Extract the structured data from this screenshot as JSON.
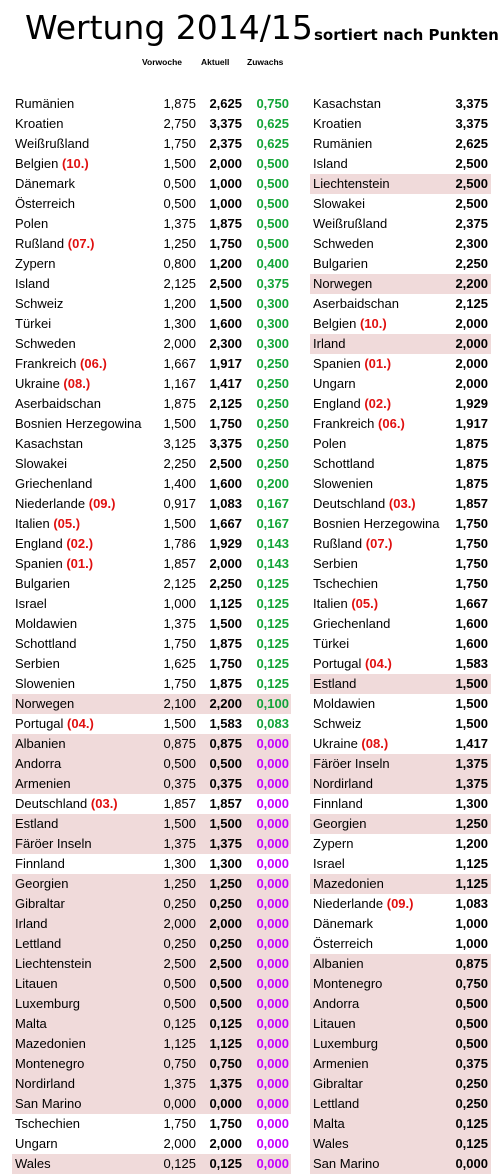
{
  "title": "Wertung 2014/15",
  "subtitle": "sortiert nach Punkten",
  "headers": {
    "vorwoche": "Vorwoche",
    "aktuell": "Aktuell",
    "zuwachs": "Zuwachs"
  },
  "colors": {
    "highlight": "#f0dada",
    "rank": "#e01010",
    "positive": "#13a538",
    "zero": "#c400ff"
  },
  "left": [
    {
      "name": "Rumänien",
      "rank": "",
      "vw": "1,875",
      "ak": "2,625",
      "zg": "0,750",
      "hl": false
    },
    {
      "name": "Kroatien",
      "rank": "",
      "vw": "2,750",
      "ak": "3,375",
      "zg": "0,625",
      "hl": false
    },
    {
      "name": "Weißrußland",
      "rank": "",
      "vw": "1,750",
      "ak": "2,375",
      "zg": "0,625",
      "hl": false
    },
    {
      "name": "Belgien",
      "rank": "(10.)",
      "vw": "1,500",
      "ak": "2,000",
      "zg": "0,500",
      "hl": false
    },
    {
      "name": "Dänemark",
      "rank": "",
      "vw": "0,500",
      "ak": "1,000",
      "zg": "0,500",
      "hl": false
    },
    {
      "name": "Österreich",
      "rank": "",
      "vw": "0,500",
      "ak": "1,000",
      "zg": "0,500",
      "hl": false
    },
    {
      "name": "Polen",
      "rank": "",
      "vw": "1,375",
      "ak": "1,875",
      "zg": "0,500",
      "hl": false
    },
    {
      "name": "Rußland",
      "rank": "(07.)",
      "vw": "1,250",
      "ak": "1,750",
      "zg": "0,500",
      "hl": false
    },
    {
      "name": "Zypern",
      "rank": "",
      "vw": "0,800",
      "ak": "1,200",
      "zg": "0,400",
      "hl": false
    },
    {
      "name": "Island",
      "rank": "",
      "vw": "2,125",
      "ak": "2,500",
      "zg": "0,375",
      "hl": false
    },
    {
      "name": "Schweiz",
      "rank": "",
      "vw": "1,200",
      "ak": "1,500",
      "zg": "0,300",
      "hl": false
    },
    {
      "name": "Türkei",
      "rank": "",
      "vw": "1,300",
      "ak": "1,600",
      "zg": "0,300",
      "hl": false
    },
    {
      "name": "Schweden",
      "rank": "",
      "vw": "2,000",
      "ak": "2,300",
      "zg": "0,300",
      "hl": false
    },
    {
      "name": "Frankreich",
      "rank": "(06.)",
      "vw": "1,667",
      "ak": "1,917",
      "zg": "0,250",
      "hl": false
    },
    {
      "name": "Ukraine",
      "rank": "(08.)",
      "vw": "1,167",
      "ak": "1,417",
      "zg": "0,250",
      "hl": false
    },
    {
      "name": "Aserbaidschan",
      "rank": "",
      "vw": "1,875",
      "ak": "2,125",
      "zg": "0,250",
      "hl": false
    },
    {
      "name": "Bosnien Herzegowina",
      "rank": "",
      "vw": "1,500",
      "ak": "1,750",
      "zg": "0,250",
      "hl": false
    },
    {
      "name": "Kasachstan",
      "rank": "",
      "vw": "3,125",
      "ak": "3,375",
      "zg": "0,250",
      "hl": false
    },
    {
      "name": "Slowakei",
      "rank": "",
      "vw": "2,250",
      "ak": "2,500",
      "zg": "0,250",
      "hl": false
    },
    {
      "name": "Griechenland",
      "rank": "",
      "vw": "1,400",
      "ak": "1,600",
      "zg": "0,200",
      "hl": false
    },
    {
      "name": "Niederlande",
      "rank": "(09.)",
      "vw": "0,917",
      "ak": "1,083",
      "zg": "0,167",
      "hl": false
    },
    {
      "name": "Italien",
      "rank": "(05.)",
      "vw": "1,500",
      "ak": "1,667",
      "zg": "0,167",
      "hl": false
    },
    {
      "name": "England",
      "rank": "(02.)",
      "vw": "1,786",
      "ak": "1,929",
      "zg": "0,143",
      "hl": false
    },
    {
      "name": "Spanien",
      "rank": "(01.)",
      "vw": "1,857",
      "ak": "2,000",
      "zg": "0,143",
      "hl": false
    },
    {
      "name": "Bulgarien",
      "rank": "",
      "vw": "2,125",
      "ak": "2,250",
      "zg": "0,125",
      "hl": false
    },
    {
      "name": "Israel",
      "rank": "",
      "vw": "1,000",
      "ak": "1,125",
      "zg": "0,125",
      "hl": false
    },
    {
      "name": "Moldawien",
      "rank": "",
      "vw": "1,375",
      "ak": "1,500",
      "zg": "0,125",
      "hl": false
    },
    {
      "name": "Schottland",
      "rank": "",
      "vw": "1,750",
      "ak": "1,875",
      "zg": "0,125",
      "hl": false
    },
    {
      "name": "Serbien",
      "rank": "",
      "vw": "1,625",
      "ak": "1,750",
      "zg": "0,125",
      "hl": false
    },
    {
      "name": "Slowenien",
      "rank": "",
      "vw": "1,750",
      "ak": "1,875",
      "zg": "0,125",
      "hl": false
    },
    {
      "name": "Norwegen",
      "rank": "",
      "vw": "2,100",
      "ak": "2,200",
      "zg": "0,100",
      "hl": true
    },
    {
      "name": "Portugal",
      "rank": "(04.)",
      "vw": "1,500",
      "ak": "1,583",
      "zg": "0,083",
      "hl": false
    },
    {
      "name": "Albanien",
      "rank": "",
      "vw": "0,875",
      "ak": "0,875",
      "zg": "0,000",
      "hl": true
    },
    {
      "name": "Andorra",
      "rank": "",
      "vw": "0,500",
      "ak": "0,500",
      "zg": "0,000",
      "hl": true
    },
    {
      "name": "Armenien",
      "rank": "",
      "vw": "0,375",
      "ak": "0,375",
      "zg": "0,000",
      "hl": true
    },
    {
      "name": "Deutschland",
      "rank": "(03.)",
      "vw": "1,857",
      "ak": "1,857",
      "zg": "0,000",
      "hl": false
    },
    {
      "name": "Estland",
      "rank": "",
      "vw": "1,500",
      "ak": "1,500",
      "zg": "0,000",
      "hl": true
    },
    {
      "name": "Färöer Inseln",
      "rank": "",
      "vw": "1,375",
      "ak": "1,375",
      "zg": "0,000",
      "hl": true
    },
    {
      "name": "Finnland",
      "rank": "",
      "vw": "1,300",
      "ak": "1,300",
      "zg": "0,000",
      "hl": false
    },
    {
      "name": "Georgien",
      "rank": "",
      "vw": "1,250",
      "ak": "1,250",
      "zg": "0,000",
      "hl": true
    },
    {
      "name": "Gibraltar",
      "rank": "",
      "vw": "0,250",
      "ak": "0,250",
      "zg": "0,000",
      "hl": true
    },
    {
      "name": "Irland",
      "rank": "",
      "vw": "2,000",
      "ak": "2,000",
      "zg": "0,000",
      "hl": true
    },
    {
      "name": "Lettland",
      "rank": "",
      "vw": "0,250",
      "ak": "0,250",
      "zg": "0,000",
      "hl": true
    },
    {
      "name": "Liechtenstein",
      "rank": "",
      "vw": "2,500",
      "ak": "2,500",
      "zg": "0,000",
      "hl": true
    },
    {
      "name": "Litauen",
      "rank": "",
      "vw": "0,500",
      "ak": "0,500",
      "zg": "0,000",
      "hl": true
    },
    {
      "name": "Luxemburg",
      "rank": "",
      "vw": "0,500",
      "ak": "0,500",
      "zg": "0,000",
      "hl": true
    },
    {
      "name": "Malta",
      "rank": "",
      "vw": "0,125",
      "ak": "0,125",
      "zg": "0,000",
      "hl": true
    },
    {
      "name": "Mazedonien",
      "rank": "",
      "vw": "1,125",
      "ak": "1,125",
      "zg": "0,000",
      "hl": true
    },
    {
      "name": "Montenegro",
      "rank": "",
      "vw": "0,750",
      "ak": "0,750",
      "zg": "0,000",
      "hl": true
    },
    {
      "name": "Nordirland",
      "rank": "",
      "vw": "1,375",
      "ak": "1,375",
      "zg": "0,000",
      "hl": true
    },
    {
      "name": "San Marino",
      "rank": "",
      "vw": "0,000",
      "ak": "0,000",
      "zg": "0,000",
      "hl": true
    },
    {
      "name": "Tschechien",
      "rank": "",
      "vw": "1,750",
      "ak": "1,750",
      "zg": "0,000",
      "hl": false
    },
    {
      "name": "Ungarn",
      "rank": "",
      "vw": "2,000",
      "ak": "2,000",
      "zg": "0,000",
      "hl": false
    },
    {
      "name": "Wales",
      "rank": "",
      "vw": "0,125",
      "ak": "0,125",
      "zg": "0,000",
      "hl": true
    }
  ],
  "right": [
    {
      "name": "Kasachstan",
      "rank": "",
      "score": "3,375",
      "hl": false
    },
    {
      "name": "Kroatien",
      "rank": "",
      "score": "3,375",
      "hl": false
    },
    {
      "name": "Rumänien",
      "rank": "",
      "score": "2,625",
      "hl": false
    },
    {
      "name": "Island",
      "rank": "",
      "score": "2,500",
      "hl": false
    },
    {
      "name": "Liechtenstein",
      "rank": "",
      "score": "2,500",
      "hl": true
    },
    {
      "name": "Slowakei",
      "rank": "",
      "score": "2,500",
      "hl": false
    },
    {
      "name": "Weißrußland",
      "rank": "",
      "score": "2,375",
      "hl": false
    },
    {
      "name": "Schweden",
      "rank": "",
      "score": "2,300",
      "hl": false
    },
    {
      "name": "Bulgarien",
      "rank": "",
      "score": "2,250",
      "hl": false
    },
    {
      "name": "Norwegen",
      "rank": "",
      "score": "2,200",
      "hl": true
    },
    {
      "name": "Aserbaidschan",
      "rank": "",
      "score": "2,125",
      "hl": false
    },
    {
      "name": "Belgien",
      "rank": "(10.)",
      "score": "2,000",
      "hl": false
    },
    {
      "name": "Irland",
      "rank": "",
      "score": "2,000",
      "hl": true
    },
    {
      "name": "Spanien",
      "rank": "(01.)",
      "score": "2,000",
      "hl": false
    },
    {
      "name": "Ungarn",
      "rank": "",
      "score": "2,000",
      "hl": false
    },
    {
      "name": "England",
      "rank": "(02.)",
      "score": "1,929",
      "hl": false
    },
    {
      "name": "Frankreich",
      "rank": "(06.)",
      "score": "1,917",
      "hl": false
    },
    {
      "name": "Polen",
      "rank": "",
      "score": "1,875",
      "hl": false
    },
    {
      "name": "Schottland",
      "rank": "",
      "score": "1,875",
      "hl": false
    },
    {
      "name": "Slowenien",
      "rank": "",
      "score": "1,875",
      "hl": false
    },
    {
      "name": "Deutschland",
      "rank": "(03.)",
      "score": "1,857",
      "hl": false
    },
    {
      "name": "Bosnien Herzegowina",
      "rank": "",
      "score": "1,750",
      "hl": false
    },
    {
      "name": "Rußland",
      "rank": "(07.)",
      "score": "1,750",
      "hl": false
    },
    {
      "name": "Serbien",
      "rank": "",
      "score": "1,750",
      "hl": false
    },
    {
      "name": "Tschechien",
      "rank": "",
      "score": "1,750",
      "hl": false
    },
    {
      "name": "Italien",
      "rank": "(05.)",
      "score": "1,667",
      "hl": false
    },
    {
      "name": "Griechenland",
      "rank": "",
      "score": "1,600",
      "hl": false
    },
    {
      "name": "Türkei",
      "rank": "",
      "score": "1,600",
      "hl": false
    },
    {
      "name": "Portugal",
      "rank": "(04.)",
      "score": "1,583",
      "hl": false
    },
    {
      "name": "Estland",
      "rank": "",
      "score": "1,500",
      "hl": true
    },
    {
      "name": "Moldawien",
      "rank": "",
      "score": "1,500",
      "hl": false
    },
    {
      "name": "Schweiz",
      "rank": "",
      "score": "1,500",
      "hl": false
    },
    {
      "name": "Ukraine",
      "rank": "(08.)",
      "score": "1,417",
      "hl": false
    },
    {
      "name": "Färöer Inseln",
      "rank": "",
      "score": "1,375",
      "hl": true
    },
    {
      "name": "Nordirland",
      "rank": "",
      "score": "1,375",
      "hl": true
    },
    {
      "name": "Finnland",
      "rank": "",
      "score": "1,300",
      "hl": false
    },
    {
      "name": "Georgien",
      "rank": "",
      "score": "1,250",
      "hl": true
    },
    {
      "name": "Zypern",
      "rank": "",
      "score": "1,200",
      "hl": false
    },
    {
      "name": "Israel",
      "rank": "",
      "score": "1,125",
      "hl": false
    },
    {
      "name": "Mazedonien",
      "rank": "",
      "score": "1,125",
      "hl": true
    },
    {
      "name": "Niederlande",
      "rank": "(09.)",
      "score": "1,083",
      "hl": false
    },
    {
      "name": "Dänemark",
      "rank": "",
      "score": "1,000",
      "hl": false
    },
    {
      "name": "Österreich",
      "rank": "",
      "score": "1,000",
      "hl": false
    },
    {
      "name": "Albanien",
      "rank": "",
      "score": "0,875",
      "hl": true
    },
    {
      "name": "Montenegro",
      "rank": "",
      "score": "0,750",
      "hl": true
    },
    {
      "name": "Andorra",
      "rank": "",
      "score": "0,500",
      "hl": true
    },
    {
      "name": "Litauen",
      "rank": "",
      "score": "0,500",
      "hl": true
    },
    {
      "name": "Luxemburg",
      "rank": "",
      "score": "0,500",
      "hl": true
    },
    {
      "name": "Armenien",
      "rank": "",
      "score": "0,375",
      "hl": true
    },
    {
      "name": "Gibraltar",
      "rank": "",
      "score": "0,250",
      "hl": true
    },
    {
      "name": "Lettland",
      "rank": "",
      "score": "0,250",
      "hl": true
    },
    {
      "name": "Malta",
      "rank": "",
      "score": "0,125",
      "hl": true
    },
    {
      "name": "Wales",
      "rank": "",
      "score": "0,125",
      "hl": true
    },
    {
      "name": "San Marino",
      "rank": "",
      "score": "0,000",
      "hl": true
    }
  ]
}
